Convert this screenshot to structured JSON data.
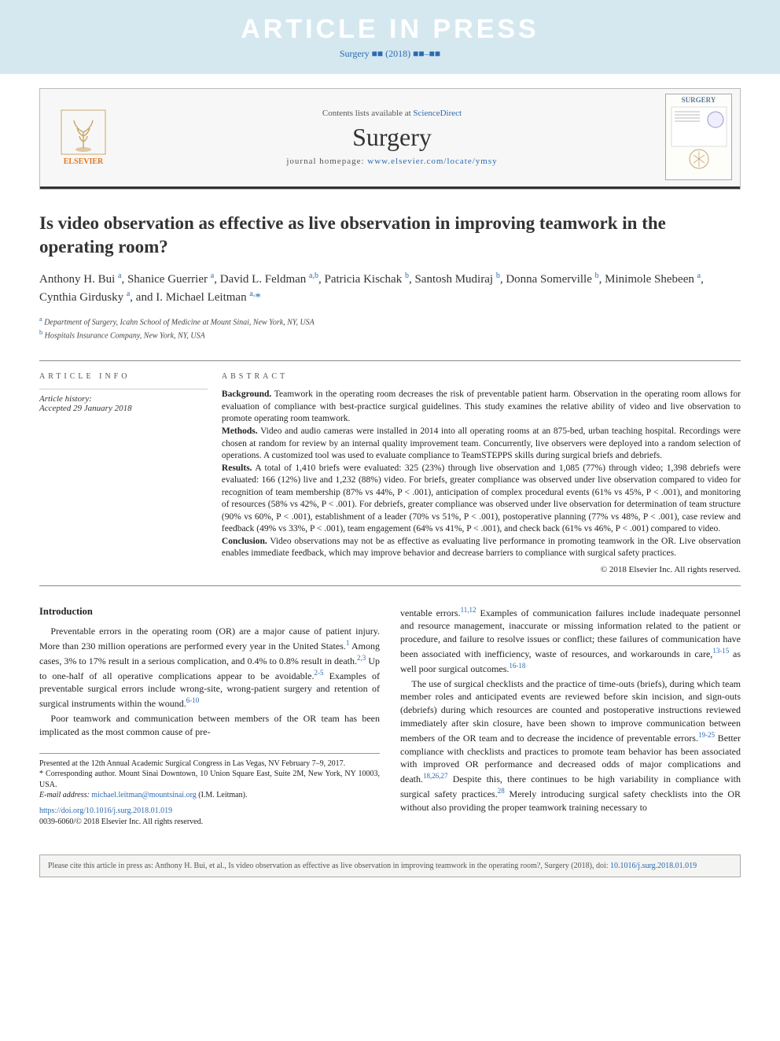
{
  "banner": {
    "title": "ARTICLE IN PRESS",
    "sub": "Surgery ■■ (2018) ■■–■■"
  },
  "header": {
    "contents_prefix": "Contents lists available at ",
    "contents_link": "ScienceDirect",
    "journal": "Surgery",
    "homepage_prefix": "journal homepage: ",
    "homepage_link": "www.elsevier.com/locate/ymsy",
    "publisher": "ELSEVIER",
    "cover_label": "SURGERY"
  },
  "article": {
    "title": "Is video observation as effective as live observation in improving teamwork in the operating room?",
    "authors_html": "Anthony H. Bui <sup class='aff'>a</sup>, Shanice Guerrier <sup class='aff'>a</sup>, David L. Feldman <sup class='aff'>a,b</sup>, Patricia Kischak <sup class='aff'>b</sup>, Santosh Mudiraj <sup class='aff'>b</sup>, Donna Somerville <sup class='aff'>b</sup>, Minimole Shebeen <sup class='aff'>a</sup>, Cynthia Girdusky <sup class='aff'>a</sup>, and I. Michael Leitman <sup class='aff'>a,</sup><a href='#'>*</a>",
    "affiliations": [
      {
        "lbl": "a",
        "text": " Department of Surgery, Icahn School of Medicine at Mount Sinai, New York, NY, USA"
      },
      {
        "lbl": "b",
        "text": " Hospitals Insurance Company, New York, NY, USA"
      }
    ]
  },
  "info": {
    "heading": "ARTICLE INFO",
    "history_label": "Article history:",
    "accepted": "Accepted 29 January 2018"
  },
  "abstract": {
    "heading": "ABSTRACT",
    "background_lbl": "Background.",
    "background": " Teamwork in the operating room decreases the risk of preventable patient harm. Observation in the operating room allows for evaluation of compliance with best-practice surgical guidelines. This study examines the relative ability of video and live observation to promote operating room teamwork.",
    "methods_lbl": "Methods.",
    "methods": " Video and audio cameras were installed in 2014 into all operating rooms at an 875-bed, urban teaching hospital. Recordings were chosen at random for review by an internal quality improvement team. Concurrently, live observers were deployed into a random selection of operations. A customized tool was used to evaluate compliance to TeamSTEPPS skills during surgical briefs and debriefs.",
    "results_lbl": "Results.",
    "results": " A total of 1,410 briefs were evaluated: 325 (23%) through live observation and 1,085 (77%) through video; 1,398 debriefs were evaluated: 166 (12%) live and 1,232 (88%) video. For briefs, greater compliance was observed under live observation compared to video for recognition of team membership (87% vs 44%, P < .001), anticipation of complex procedural events (61% vs 45%, P < .001), and monitoring of resources (58% vs 42%, P < .001). For debriefs, greater compliance was observed under live observation for determination of team structure (90% vs 60%, P < .001), establishment of a leader (70% vs 51%, P < .001), postoperative planning (77% vs 48%, P < .001), case review and feedback (49% vs 33%, P < .001), team engagement (64% vs 41%, P < .001), and check back (61% vs 46%, P < .001) compared to video.",
    "conclusion_lbl": "Conclusion.",
    "conclusion": " Video observations may not be as effective as evaluating live performance in promoting teamwork in the OR. Live observation enables immediate feedback, which may improve behavior and decrease barriers to compliance with surgical safety practices.",
    "copyright": "© 2018 Elsevier Inc. All rights reserved."
  },
  "body": {
    "intro_heading": "Introduction",
    "col1_p1": "Preventable errors in the operating room (OR) are a major cause of patient injury. More than 230 million operations are performed every year in the United States.<sup>1</sup> Among cases, 3% to 17% result in a serious complication, and 0.4% to 0.8% result in death.<sup>2,3</sup> Up to one-half of all operative complications appear to be avoidable.<sup>2-5</sup> Examples of preventable surgical errors include wrong-site, wrong-patient surgery and retention of surgical instruments within the wound.<sup>6-10</sup>",
    "col1_p2": "Poor teamwork and communication between members of the OR team has been implicated as the most common cause of pre-",
    "col2_p1": "ventable errors.<sup>11,12</sup> Examples of communication failures include inadequate personnel and resource management, inaccurate or missing information related to the patient or procedure, and failure to resolve issues or conflict; these failures of communication have been associated with inefficiency, waste of resources, and workarounds in care,<sup>13-15</sup> as well poor surgical outcomes.<sup>16-18</sup>",
    "col2_p2": "The use of surgical checklists and the practice of time-outs (briefs), during which team member roles and anticipated events are reviewed before skin incision, and sign-outs (debriefs) during which resources are counted and postoperative instructions reviewed immediately after skin closure, have been shown to improve communication between members of the OR team and to decrease the incidence of preventable errors.<sup>19-25</sup> Better compliance with checklists and practices to promote team behavior has been associated with improved OR performance and decreased odds of major complications and death.<sup>18,26,27</sup> Despite this, there continues to be high variability in compliance with surgical safety practices.<sup>28</sup> Merely introducing surgical safety checklists into the OR without also providing the proper teamwork training necessary to"
  },
  "footnotes": {
    "presented": "Presented at the 12th Annual Academic Surgical Congress in Las Vegas, NV February 7–9, 2017.",
    "corresponding": "* Corresponding author. Mount Sinai Downtown, 10 Union Square East, Suite 2M, New York, NY 10003, USA.",
    "email_label": "E-mail address: ",
    "email": "michael.leitman@mountsinai.org",
    "email_person": " (I.M. Leitman).",
    "doi": "https://doi.org/10.1016/j.surg.2018.01.019",
    "issn": "0039-6060/© 2018 Elsevier Inc. All rights reserved."
  },
  "citebox": {
    "text_prefix": "Please cite this article in press as: Anthony H. Bui, et al., Is video observation as effective as live observation in improving teamwork in the operating room?, Surgery (2018), doi: ",
    "doi": "10.1016/j.surg.2018.01.019"
  },
  "colors": {
    "banner_bg": "#d5e8f0",
    "link": "#2a6ab0",
    "publisher": "#e8751a"
  }
}
